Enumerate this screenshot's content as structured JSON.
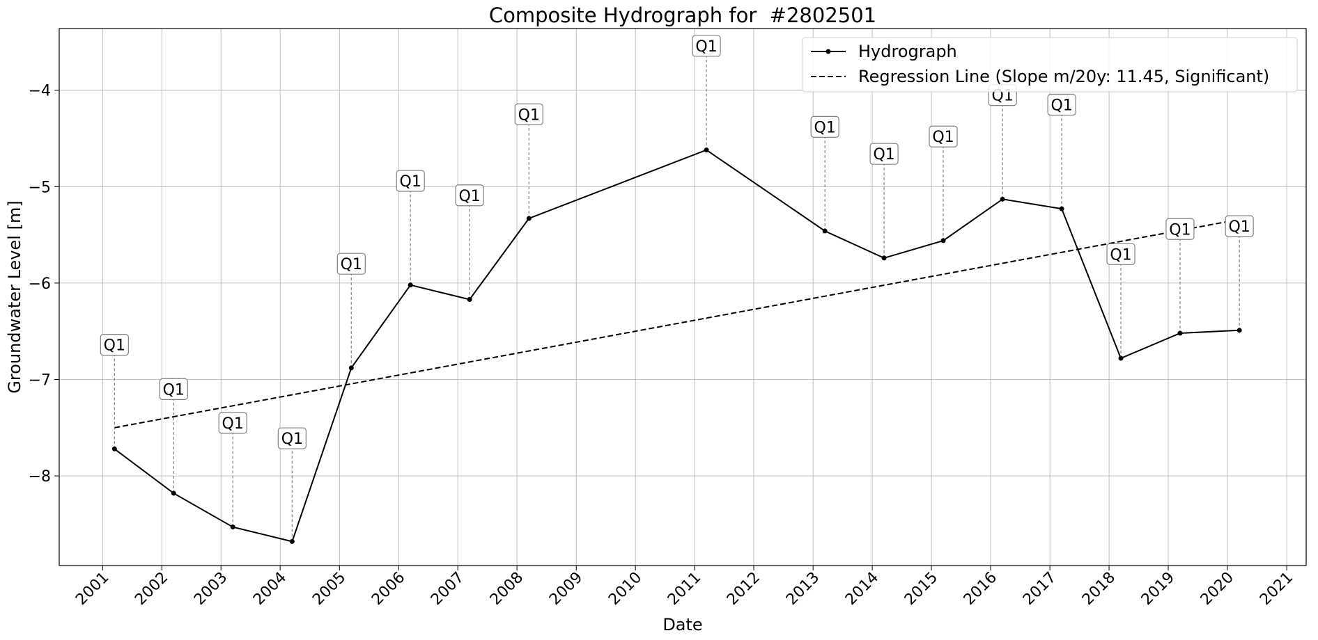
{
  "chart_data": {
    "type": "line",
    "title": "Composite Hydrograph for  #2802501",
    "xlabel": "Date",
    "ylabel": "Groundwater Level [m]",
    "x_axis": "date",
    "xlim": [
      "2000-04-08",
      "2021-05-01"
    ],
    "ylim": [
      -8.93,
      -3.36
    ],
    "x_ticks": [
      "2001",
      "2002",
      "2003",
      "2004",
      "2005",
      "2006",
      "2007",
      "2008",
      "2009",
      "2010",
      "2011",
      "2012",
      "2013",
      "2014",
      "2015",
      "2016",
      "2017",
      "2018",
      "2019",
      "2020",
      "2021"
    ],
    "y_ticks": [
      -4,
      -5,
      -6,
      -7,
      -8
    ],
    "y_tick_labels": [
      "−4",
      "−5",
      "−6",
      "−7",
      "−8"
    ],
    "grid": true,
    "legend_position": "top-right",
    "series": [
      {
        "name": "Hydrograph",
        "style": "solid-with-markers",
        "color": "#000000",
        "x": [
          "2001-03-15",
          "2002-03-15",
          "2003-03-15",
          "2004-03-15",
          "2005-03-15",
          "2006-03-15",
          "2007-03-15",
          "2008-03-15",
          "2011-03-15",
          "2013-03-15",
          "2014-03-15",
          "2015-03-15",
          "2016-03-15",
          "2017-03-15",
          "2018-03-15",
          "2019-03-15",
          "2020-03-15"
        ],
        "y": [
          -7.72,
          -8.18,
          -8.53,
          -8.68,
          -6.88,
          -6.02,
          -6.17,
          -5.33,
          -4.62,
          -5.46,
          -5.74,
          -5.56,
          -5.13,
          -5.23,
          -6.78,
          -6.52,
          -6.49
        ],
        "labels": [
          "Q1",
          "Q1",
          "Q1",
          "Q1",
          "Q1",
          "Q1",
          "Q1",
          "Q1",
          "Q1",
          "Q1",
          "Q1",
          "Q1",
          "Q1",
          "Q1",
          "Q1",
          "Q1",
          "Q1"
        ],
        "label_y": [
          -6.64,
          -7.1,
          -7.45,
          -7.61,
          -5.8,
          -4.94,
          -5.09,
          -4.25,
          -3.54,
          -4.38,
          -4.66,
          -4.48,
          -4.05,
          -4.15,
          -5.7,
          -5.44,
          -5.41
        ]
      },
      {
        "name": "Regression Line (Slope m/20y: 11.45, Significant)",
        "style": "dashed",
        "color": "#000000",
        "x": [
          "2001-03-15",
          "2020-03-15"
        ],
        "y": [
          -7.5,
          -5.34
        ]
      }
    ]
  }
}
